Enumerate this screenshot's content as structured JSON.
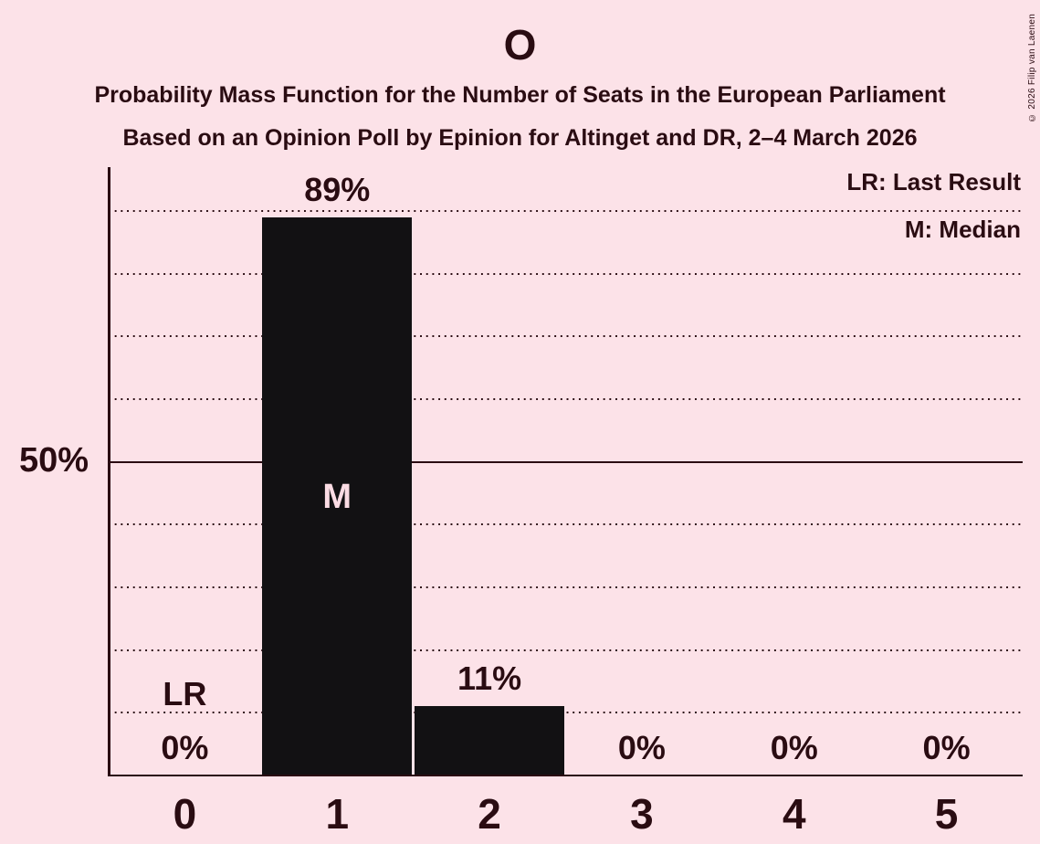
{
  "page": {
    "title": "O",
    "subtitle": "Probability Mass Function for the Number of Seats in the European Parliament",
    "sub_subtitle": "Based on an Opinion Poll by Epinion for Altinget and DR, 2–4 March 2026",
    "copyright": "© 2026 Filip van Laenen"
  },
  "legend": {
    "last_result": "LR: Last Result",
    "median": "M: Median"
  },
  "y_axis": {
    "tick_label": "50%",
    "tick_value": 50,
    "solid_line_at": 50,
    "gridlines_pct": [
      10,
      20,
      30,
      40,
      50,
      60,
      70,
      80,
      90
    ]
  },
  "chart_data": {
    "type": "bar",
    "title": "O",
    "subtitle": "Probability Mass Function for the Number of Seats in the European Parliament",
    "sub_subtitle": "Based on an Opinion Poll by Epinion for Altinget and DR, 2–4 March 2026",
    "categories": [
      "0",
      "1",
      "2",
      "3",
      "4",
      "5"
    ],
    "values": [
      0,
      89,
      11,
      0,
      0,
      0
    ],
    "value_labels": [
      "0%",
      "89%",
      "11%",
      "0%",
      "0%",
      "0%"
    ],
    "ylim": [
      0,
      100
    ],
    "grid": "horizontal dotted every 10%, solid at 50%",
    "legend_position": "top-right",
    "legend_entries": [
      "LR: Last Result",
      "M: Median"
    ],
    "annotations": {
      "median_marker": "M",
      "median_category": "1",
      "last_result_marker": "LR",
      "last_result_category": "0"
    }
  },
  "colors": {
    "background": "#fce2e8",
    "bar": "#121113",
    "text": "#2a0c12",
    "bar_label_text": "#fbdce4"
  }
}
